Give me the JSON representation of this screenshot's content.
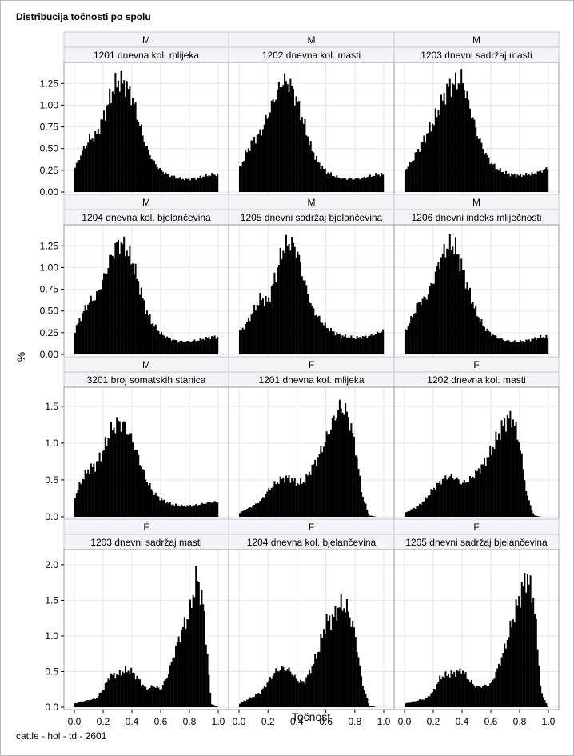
{
  "title": "Distribucija točnosti po spolu",
  "footnote": "cattle - hol - td - 2601",
  "chart_data": {
    "type": "bar",
    "xlabel": "Točnost",
    "ylabel": "%",
    "xlim": [
      0,
      1
    ],
    "xticks": [
      "0.0",
      "0.2",
      "0.4",
      "0.6",
      "0.8",
      "1.0"
    ],
    "grid": true,
    "rows": [
      {
        "ylim": [
          0,
          1.4
        ],
        "yticks": [
          "0.00",
          "0.25",
          "0.50",
          "0.75",
          "1.00",
          "1.25"
        ]
      },
      {
        "ylim": [
          0,
          1.4
        ],
        "yticks": [
          "0.00",
          "0.25",
          "0.50",
          "0.75",
          "1.00",
          "1.25"
        ]
      },
      {
        "ylim": [
          0,
          1.65
        ],
        "yticks": [
          "0.0",
          "0.5",
          "1.0",
          "1.5"
        ]
      },
      {
        "ylim": [
          0,
          2.1
        ],
        "yticks": [
          "0.0",
          "0.5",
          "1.0",
          "1.5",
          "2.0"
        ]
      }
    ],
    "panels": [
      {
        "sex": "M",
        "trait": "1201 dnevna kol. mlijeka",
        "x": [
          0.0,
          0.05,
          0.1,
          0.15,
          0.2,
          0.25,
          0.3,
          0.35,
          0.4,
          0.45,
          0.5,
          0.55,
          0.6,
          0.65,
          0.7,
          0.75,
          0.8,
          0.85,
          0.9,
          0.95,
          1.0
        ],
        "values": [
          0.26,
          0.45,
          0.6,
          0.65,
          0.85,
          1.1,
          1.28,
          1.25,
          1.1,
          0.8,
          0.52,
          0.35,
          0.25,
          0.2,
          0.17,
          0.15,
          0.15,
          0.16,
          0.18,
          0.2,
          0.2
        ]
      },
      {
        "sex": "M",
        "trait": "1202 dnevna kol. masti",
        "x": [
          0.0,
          0.05,
          0.1,
          0.15,
          0.2,
          0.25,
          0.3,
          0.35,
          0.4,
          0.45,
          0.5,
          0.55,
          0.6,
          0.65,
          0.7,
          0.75,
          0.8,
          0.85,
          0.9,
          0.95,
          1.0
        ],
        "values": [
          0.25,
          0.45,
          0.6,
          0.68,
          0.88,
          1.1,
          1.28,
          1.25,
          1.05,
          0.78,
          0.5,
          0.33,
          0.24,
          0.19,
          0.16,
          0.15,
          0.15,
          0.16,
          0.18,
          0.2,
          0.2
        ]
      },
      {
        "sex": "M",
        "trait": "1203 dnevni sadržaj masti",
        "x": [
          0.0,
          0.05,
          0.1,
          0.15,
          0.2,
          0.25,
          0.3,
          0.35,
          0.4,
          0.45,
          0.5,
          0.55,
          0.6,
          0.65,
          0.7,
          0.75,
          0.8,
          0.85,
          0.9,
          0.95,
          1.0
        ],
        "values": [
          0.25,
          0.35,
          0.5,
          0.65,
          0.8,
          1.0,
          1.2,
          1.25,
          1.3,
          1.0,
          0.7,
          0.48,
          0.34,
          0.26,
          0.22,
          0.2,
          0.19,
          0.2,
          0.21,
          0.24,
          0.28
        ]
      },
      {
        "sex": "M",
        "trait": "1204 dnevna kol. bjelančevina",
        "x": [
          0.0,
          0.05,
          0.1,
          0.15,
          0.2,
          0.25,
          0.3,
          0.35,
          0.4,
          0.45,
          0.5,
          0.55,
          0.6,
          0.65,
          0.7,
          0.75,
          0.8,
          0.85,
          0.9,
          0.95,
          1.0
        ],
        "values": [
          0.26,
          0.45,
          0.6,
          0.66,
          0.86,
          1.1,
          1.28,
          1.25,
          1.08,
          0.8,
          0.5,
          0.34,
          0.24,
          0.19,
          0.16,
          0.15,
          0.15,
          0.16,
          0.18,
          0.2,
          0.2
        ]
      },
      {
        "sex": "M",
        "trait": "1205 dnevni sadržaj bjelančevina",
        "x": [
          0.0,
          0.05,
          0.1,
          0.15,
          0.2,
          0.25,
          0.3,
          0.35,
          0.4,
          0.45,
          0.5,
          0.55,
          0.6,
          0.65,
          0.7,
          0.75,
          0.8,
          0.85,
          0.9,
          0.95,
          1.0
        ],
        "values": [
          0.25,
          0.35,
          0.5,
          0.65,
          0.6,
          0.9,
          1.2,
          1.3,
          1.2,
          0.85,
          0.55,
          0.42,
          0.32,
          0.26,
          0.22,
          0.2,
          0.19,
          0.2,
          0.21,
          0.24,
          0.28
        ]
      },
      {
        "sex": "M",
        "trait": "1206 dnevni indeks mliječnosti",
        "x": [
          0.0,
          0.05,
          0.1,
          0.15,
          0.2,
          0.25,
          0.3,
          0.35,
          0.4,
          0.45,
          0.5,
          0.55,
          0.6,
          0.65,
          0.7,
          0.75,
          0.8,
          0.85,
          0.9,
          0.95,
          1.0
        ],
        "values": [
          0.25,
          0.42,
          0.6,
          0.65,
          0.85,
          1.1,
          1.25,
          1.25,
          1.0,
          0.72,
          0.48,
          0.32,
          0.24,
          0.19,
          0.16,
          0.15,
          0.15,
          0.16,
          0.18,
          0.2,
          0.2
        ]
      },
      {
        "sex": "M",
        "trait": "3201 broj somatskih stanica",
        "x": [
          0.0,
          0.05,
          0.1,
          0.15,
          0.2,
          0.25,
          0.3,
          0.35,
          0.4,
          0.45,
          0.5,
          0.55,
          0.6,
          0.65,
          0.7,
          0.75,
          0.8,
          0.85,
          0.9,
          0.95,
          1.0
        ],
        "values": [
          0.25,
          0.5,
          0.65,
          0.7,
          0.9,
          1.15,
          1.28,
          1.25,
          1.05,
          0.78,
          0.5,
          0.33,
          0.24,
          0.19,
          0.16,
          0.15,
          0.15,
          0.16,
          0.18,
          0.2,
          0.2
        ]
      },
      {
        "sex": "F",
        "trait": "1201 dnevna kol. mlijeka",
        "x": [
          0.0,
          0.05,
          0.1,
          0.15,
          0.2,
          0.25,
          0.3,
          0.35,
          0.4,
          0.45,
          0.5,
          0.55,
          0.6,
          0.65,
          0.7,
          0.75,
          0.8,
          0.85,
          0.9,
          0.95,
          1.0
        ],
        "values": [
          0.05,
          0.1,
          0.15,
          0.22,
          0.35,
          0.45,
          0.52,
          0.53,
          0.45,
          0.48,
          0.65,
          0.82,
          1.05,
          1.3,
          1.5,
          1.4,
          1.0,
          0.3,
          0.02,
          0,
          0
        ]
      },
      {
        "sex": "F",
        "trait": "1202 dnevna kol. masti",
        "x": [
          0.0,
          0.05,
          0.1,
          0.15,
          0.2,
          0.25,
          0.3,
          0.35,
          0.4,
          0.45,
          0.5,
          0.55,
          0.6,
          0.65,
          0.7,
          0.75,
          0.8,
          0.85,
          0.9,
          0.95,
          1.0
        ],
        "values": [
          0.05,
          0.1,
          0.15,
          0.25,
          0.38,
          0.48,
          0.55,
          0.53,
          0.45,
          0.5,
          0.6,
          0.72,
          0.88,
          1.1,
          1.3,
          1.35,
          1.0,
          0.3,
          0.02,
          0,
          0
        ]
      },
      {
        "sex": "F",
        "trait": "1203 dnevni sadržaj masti",
        "x": [
          0.0,
          0.05,
          0.1,
          0.15,
          0.2,
          0.25,
          0.3,
          0.35,
          0.4,
          0.45,
          0.5,
          0.55,
          0.6,
          0.65,
          0.7,
          0.75,
          0.8,
          0.85,
          0.9,
          0.95,
          1.0
        ],
        "values": [
          0.05,
          0.08,
          0.1,
          0.12,
          0.25,
          0.45,
          0.45,
          0.52,
          0.5,
          0.38,
          0.25,
          0.3,
          0.25,
          0.45,
          0.8,
          1.1,
          1.3,
          1.85,
          1.4,
          0.05,
          0
        ]
      },
      {
        "sex": "F",
        "trait": "1204 dnevna kol. bjelančevina",
        "x": [
          0.0,
          0.05,
          0.1,
          0.15,
          0.2,
          0.25,
          0.3,
          0.35,
          0.4,
          0.45,
          0.5,
          0.55,
          0.6,
          0.65,
          0.7,
          0.75,
          0.8,
          0.85,
          0.9,
          0.95,
          1.0
        ],
        "values": [
          0.05,
          0.1,
          0.15,
          0.22,
          0.35,
          0.5,
          0.55,
          0.52,
          0.38,
          0.35,
          0.55,
          0.8,
          1.2,
          1.25,
          1.45,
          1.38,
          1.05,
          0.35,
          0.02,
          0,
          0
        ]
      },
      {
        "sex": "F",
        "trait": "1205 dnevni sadržaj bjelančevina",
        "x": [
          0.0,
          0.05,
          0.1,
          0.15,
          0.2,
          0.25,
          0.3,
          0.35,
          0.4,
          0.45,
          0.5,
          0.55,
          0.6,
          0.65,
          0.7,
          0.75,
          0.8,
          0.85,
          0.9,
          0.95,
          1.0
        ],
        "values": [
          0.05,
          0.07,
          0.1,
          0.12,
          0.22,
          0.42,
          0.46,
          0.48,
          0.52,
          0.38,
          0.28,
          0.3,
          0.32,
          0.55,
          0.85,
          1.2,
          1.55,
          1.85,
          1.5,
          0.2,
          0
        ]
      }
    ]
  }
}
